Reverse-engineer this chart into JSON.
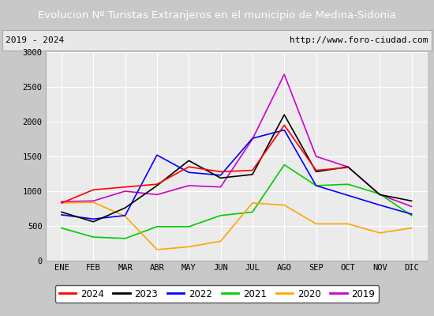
{
  "title": "Evolucion Nº Turistas Extranjeros en el municipio de Medina-Sidonia",
  "subtitle_left": "2019 - 2024",
  "subtitle_right": "http://www.foro-ciudad.com",
  "months": [
    "ENE",
    "FEB",
    "MAR",
    "ABR",
    "MAY",
    "JUN",
    "JUL",
    "AGO",
    "SEP",
    "OCT",
    "NOV",
    "DIC"
  ],
  "ylim": [
    0,
    3000
  ],
  "yticks": [
    0,
    500,
    1000,
    1500,
    2000,
    2500,
    3000
  ],
  "series": {
    "2024": {
      "color": "#ff0000",
      "values": [
        830,
        1020,
        1060,
        1100,
        1350,
        1280,
        1300,
        1950,
        1300,
        1340,
        null,
        null
      ]
    },
    "2023": {
      "color": "#000000",
      "values": [
        700,
        560,
        760,
        1080,
        1440,
        1190,
        1240,
        2100,
        1280,
        1350,
        950,
        860
      ]
    },
    "2022": {
      "color": "#0000ff",
      "values": [
        660,
        600,
        650,
        1520,
        1270,
        1230,
        1760,
        1880,
        1080,
        940,
        800,
        670
      ]
    },
    "2021": {
      "color": "#00cc00",
      "values": [
        470,
        340,
        320,
        490,
        490,
        650,
        700,
        1380,
        1080,
        1100,
        960,
        650
      ]
    },
    "2020": {
      "color": "#ffa500",
      "values": [
        830,
        840,
        640,
        160,
        200,
        280,
        830,
        800,
        530,
        530,
        400,
        470
      ]
    },
    "2019": {
      "color": "#cc00cc",
      "values": [
        null,
        null,
        null,
        null,
        null,
        null,
        null,
        2680,
        1500,
        null,
        null,
        null
      ]
    }
  },
  "series_full": {
    "2019": {
      "color": "#cc00cc",
      "values": [
        850,
        860,
        1000,
        950,
        1080,
        1060,
        1750,
        2680,
        1500,
        1350,
        950,
        780
      ]
    }
  },
  "legend_order": [
    "2024",
    "2023",
    "2022",
    "2021",
    "2020",
    "2019"
  ],
  "title_bg_color": "#4472c4",
  "title_text_color": "#ffffff",
  "plot_bg_color": "#ebebeb",
  "grid_color": "#ffffff",
  "outer_bg_color": "#c8c8c8",
  "subtitle_box_color": "#e8e8e8"
}
